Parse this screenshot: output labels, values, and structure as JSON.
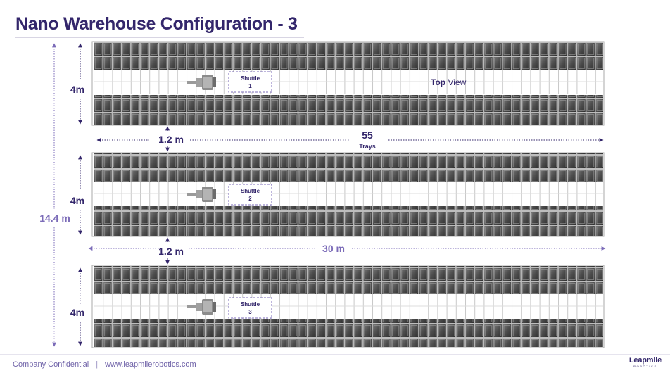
{
  "title": "Nano Warehouse Configuration - 3",
  "labels": {
    "top_view_bold": "Top",
    "top_view_rest": " View",
    "height_label": "4m",
    "total_height": "14.4 m",
    "aisle_gap": "1.2 m",
    "trays_count": "55",
    "trays_word": "Trays",
    "length": "30 m"
  },
  "shuttles": [
    {
      "name": "Shuttle",
      "number": "1"
    },
    {
      "name": "Shuttle",
      "number": "2"
    },
    {
      "name": "Shuttle",
      "number": "3"
    }
  ],
  "colors": {
    "title": "#33266b",
    "accent": "#7b6bb8",
    "dimension_text": "#33266b",
    "total_height_text": "#7b6bb8",
    "tray_dark": "#4a4a4a",
    "tray_light": "#8a8a8a"
  },
  "footer": {
    "confidential": "Company Confidential",
    "separator": "|",
    "website": "www.leapmilerobotics.com",
    "logo_word": "Leapmile",
    "logo_sub": "ROBOTICS"
  }
}
